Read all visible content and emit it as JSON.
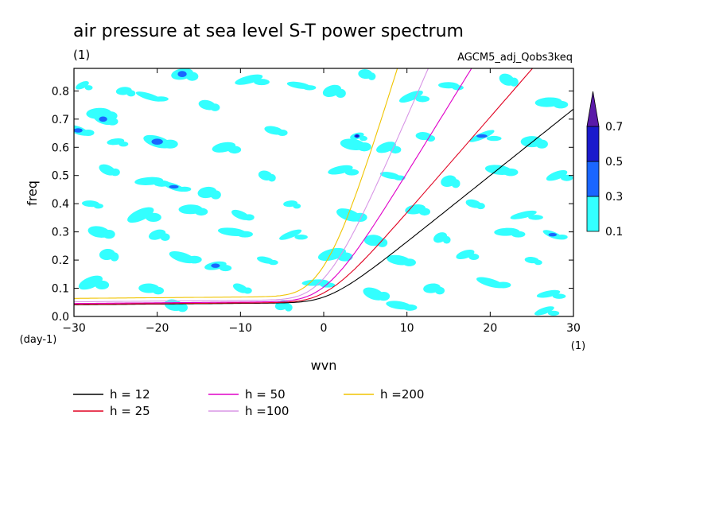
{
  "chart_data": {
    "type": "heatmap",
    "title": "air pressure at sea level S-T power spectrum",
    "subtitle_unit": "(1)",
    "run_label": "AGCM5_adj_Qobs3keq",
    "xlabel": "wvn",
    "x_unit": "(1)",
    "ylabel": "freq",
    "y_unit": "(day-1)",
    "xlim": [
      -30,
      30
    ],
    "ylim": [
      0.0,
      0.88
    ],
    "xticks": [
      -30,
      -20,
      -10,
      0,
      10,
      20,
      30
    ],
    "yticks": [
      0.0,
      0.1,
      0.2,
      0.3,
      0.4,
      0.5,
      0.6,
      0.7,
      0.8
    ],
    "xtick_labels": [
      "-30",
      "-20",
      "-10",
      "0",
      "10",
      "20",
      "30"
    ],
    "ytick_labels": [
      "0.0",
      "0.1",
      "0.2",
      "0.3",
      "0.4",
      "0.5",
      "0.6",
      "0.7",
      "0.8"
    ],
    "colorbar": {
      "levels": [
        0.1,
        0.3,
        0.5,
        0.7
      ],
      "labels": [
        "0.1",
        "0.3",
        "0.5",
        "0.7"
      ],
      "colors": [
        "#33ffff",
        "#1a66ff",
        "#1a1acc",
        "#5a1aa8"
      ]
    },
    "dispersion_curves": [
      {
        "name": "h = 12",
        "h": 12,
        "color": "#000000"
      },
      {
        "name": "h = 25",
        "h": 25,
        "color": "#e00020"
      },
      {
        "name": "h = 50",
        "h": 50,
        "color": "#e000c8"
      },
      {
        "name": "h =100",
        "h": 100,
        "color": "#d896e6"
      },
      {
        "name": "h =200",
        "h": 200,
        "color": "#f0c400"
      }
    ],
    "shaded_blobs": [
      {
        "x": -29,
        "y": 0.82,
        "l": 1
      },
      {
        "x": -27,
        "y": 0.72,
        "l": 1
      },
      {
        "x": -26.5,
        "y": 0.7,
        "l": 2
      },
      {
        "x": -24,
        "y": 0.8,
        "l": 1
      },
      {
        "x": -21,
        "y": 0.78,
        "l": 1
      },
      {
        "x": -17,
        "y": 0.86,
        "l": 2
      },
      {
        "x": -14,
        "y": 0.75,
        "l": 1
      },
      {
        "x": -9,
        "y": 0.84,
        "l": 1
      },
      {
        "x": -3,
        "y": 0.82,
        "l": 1
      },
      {
        "x": 1,
        "y": 0.8,
        "l": 1
      },
      {
        "x": 5,
        "y": 0.86,
        "l": 1
      },
      {
        "x": 10.5,
        "y": 0.78,
        "l": 1
      },
      {
        "x": 15,
        "y": 0.82,
        "l": 1
      },
      {
        "x": 22,
        "y": 0.84,
        "l": 1
      },
      {
        "x": 27,
        "y": 0.76,
        "l": 1
      },
      {
        "x": -29.5,
        "y": 0.66,
        "l": 2
      },
      {
        "x": -25,
        "y": 0.62,
        "l": 1
      },
      {
        "x": -20,
        "y": 0.62,
        "l": 2
      },
      {
        "x": -12,
        "y": 0.6,
        "l": 1
      },
      {
        "x": -6,
        "y": 0.66,
        "l": 1
      },
      {
        "x": 4,
        "y": 0.64,
        "l": 3
      },
      {
        "x": 3.5,
        "y": 0.61,
        "l": 1
      },
      {
        "x": 7.5,
        "y": 0.6,
        "l": 1
      },
      {
        "x": 12,
        "y": 0.64,
        "l": 1
      },
      {
        "x": 19,
        "y": 0.64,
        "l": 2
      },
      {
        "x": 25,
        "y": 0.62,
        "l": 1
      },
      {
        "x": -26,
        "y": 0.52,
        "l": 1
      },
      {
        "x": -21,
        "y": 0.48,
        "l": 1
      },
      {
        "x": -18,
        "y": 0.46,
        "l": 2
      },
      {
        "x": -14,
        "y": 0.44,
        "l": 1
      },
      {
        "x": -7,
        "y": 0.5,
        "l": 1
      },
      {
        "x": 2,
        "y": 0.52,
        "l": 1
      },
      {
        "x": 8,
        "y": 0.5,
        "l": 1
      },
      {
        "x": 15,
        "y": 0.48,
        "l": 1
      },
      {
        "x": 21,
        "y": 0.52,
        "l": 1
      },
      {
        "x": 28,
        "y": 0.5,
        "l": 1
      },
      {
        "x": -28,
        "y": 0.4,
        "l": 1
      },
      {
        "x": -22,
        "y": 0.36,
        "l": 1
      },
      {
        "x": -16,
        "y": 0.38,
        "l": 1
      },
      {
        "x": -10,
        "y": 0.36,
        "l": 1
      },
      {
        "x": -4,
        "y": 0.4,
        "l": 1
      },
      {
        "x": 3,
        "y": 0.36,
        "l": 1
      },
      {
        "x": 11,
        "y": 0.38,
        "l": 1
      },
      {
        "x": 18,
        "y": 0.4,
        "l": 1
      },
      {
        "x": 24,
        "y": 0.36,
        "l": 1
      },
      {
        "x": -27,
        "y": 0.3,
        "l": 1
      },
      {
        "x": -20,
        "y": 0.29,
        "l": 1
      },
      {
        "x": -11,
        "y": 0.3,
        "l": 1
      },
      {
        "x": -4,
        "y": 0.29,
        "l": 1
      },
      {
        "x": 6,
        "y": 0.27,
        "l": 1
      },
      {
        "x": 14,
        "y": 0.28,
        "l": 1
      },
      {
        "x": 22,
        "y": 0.3,
        "l": 1
      },
      {
        "x": 27.5,
        "y": 0.29,
        "l": 2
      },
      {
        "x": -26,
        "y": 0.22,
        "l": 1
      },
      {
        "x": -17,
        "y": 0.21,
        "l": 1
      },
      {
        "x": -13,
        "y": 0.18,
        "l": 2
      },
      {
        "x": -7,
        "y": 0.2,
        "l": 1
      },
      {
        "x": 1,
        "y": 0.22,
        "l": 1
      },
      {
        "x": 9,
        "y": 0.2,
        "l": 1
      },
      {
        "x": 17,
        "y": 0.22,
        "l": 1
      },
      {
        "x": 25,
        "y": 0.2,
        "l": 1
      },
      {
        "x": -28,
        "y": 0.12,
        "l": 1
      },
      {
        "x": -21,
        "y": 0.1,
        "l": 1
      },
      {
        "x": -10,
        "y": 0.1,
        "l": 1
      },
      {
        "x": -1,
        "y": 0.12,
        "l": 1
      },
      {
        "x": 6,
        "y": 0.08,
        "l": 1
      },
      {
        "x": 13,
        "y": 0.1,
        "l": 1
      },
      {
        "x": 20,
        "y": 0.12,
        "l": 1
      },
      {
        "x": 27,
        "y": 0.08,
        "l": 1
      },
      {
        "x": -18,
        "y": 0.04,
        "l": 1
      },
      {
        "x": -5,
        "y": 0.04,
        "l": 1
      },
      {
        "x": 9,
        "y": 0.04,
        "l": 1
      },
      {
        "x": 26.5,
        "y": 0.02,
        "l": 1
      }
    ],
    "legend_placement": "below plot, three columns"
  }
}
